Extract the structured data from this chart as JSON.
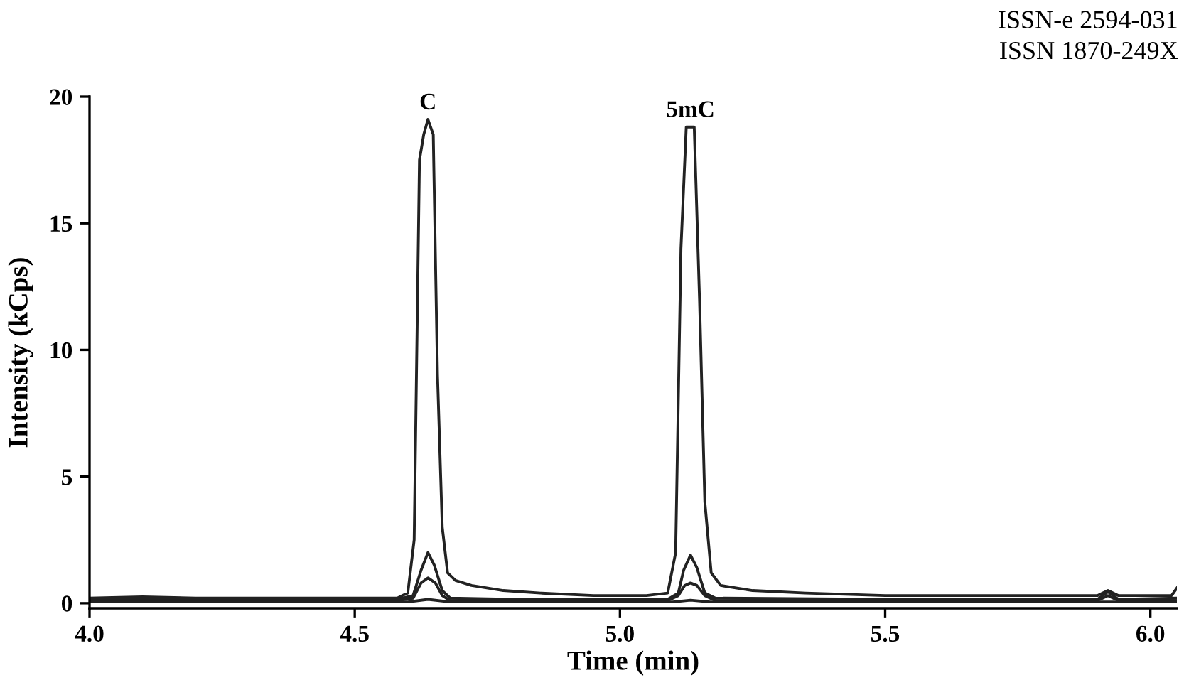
{
  "chart_data": {
    "type": "line",
    "xlabel": "Time (min)",
    "ylabel": "Intensity (kCps)",
    "xlim": [
      4.0,
      6.05
    ],
    "ylim": [
      -0.2,
      20
    ],
    "xticks": [
      {
        "value": 4.0,
        "label": "4.0"
      },
      4.5,
      {
        "value": 5.0,
        "label": "5.0"
      },
      5.5,
      {
        "value": 6.0,
        "label": "6.0"
      }
    ],
    "yticks": [
      0,
      5,
      10,
      15,
      20
    ],
    "grid": false,
    "legend": false,
    "marker": "none",
    "line_style": "solid",
    "series": [
      {
        "color": "#222222",
        "x": [
          4.0,
          4.1,
          4.2,
          4.3,
          4.4,
          4.5,
          4.58,
          4.6,
          4.612,
          4.622,
          4.63,
          4.638,
          4.648,
          4.656,
          4.665,
          4.675,
          4.69,
          4.72,
          4.78,
          4.85,
          4.95,
          5.05,
          5.09,
          5.105,
          5.115,
          5.125,
          5.14,
          5.15,
          5.16,
          5.172,
          5.19,
          5.25,
          5.35,
          5.5,
          5.7,
          5.9,
          5.92,
          5.94,
          6.0,
          6.04,
          6.05
        ],
        "values": [
          0.2,
          0.25,
          0.2,
          0.2,
          0.2,
          0.2,
          0.2,
          0.4,
          2.5,
          17.5,
          18.5,
          19.1,
          18.5,
          9.0,
          3.0,
          1.2,
          0.9,
          0.7,
          0.5,
          0.4,
          0.3,
          0.3,
          0.4,
          2.0,
          14.0,
          18.8,
          18.8,
          12.0,
          4.0,
          1.2,
          0.7,
          0.5,
          0.4,
          0.3,
          0.3,
          0.3,
          0.5,
          0.3,
          0.3,
          0.3,
          0.6
        ]
      },
      {
        "color": "#222222",
        "x": [
          4.0,
          4.3,
          4.58,
          4.61,
          4.625,
          4.638,
          4.65,
          4.665,
          4.68,
          4.8,
          5.09,
          5.11,
          5.12,
          5.133,
          5.145,
          5.16,
          5.18,
          5.5,
          5.9,
          5.92,
          5.94,
          6.05
        ],
        "values": [
          0.15,
          0.15,
          0.15,
          0.3,
          1.3,
          2.0,
          1.5,
          0.5,
          0.2,
          0.15,
          0.15,
          0.4,
          1.3,
          1.9,
          1.4,
          0.4,
          0.2,
          0.15,
          0.15,
          0.45,
          0.15,
          0.2
        ]
      },
      {
        "color": "#222222",
        "x": [
          4.0,
          4.3,
          4.58,
          4.61,
          4.625,
          4.638,
          4.652,
          4.665,
          4.68,
          4.8,
          5.09,
          5.11,
          5.122,
          5.133,
          5.145,
          5.16,
          5.18,
          5.5,
          5.9,
          5.92,
          5.94,
          6.05
        ],
        "values": [
          0.1,
          0.1,
          0.1,
          0.2,
          0.8,
          1.0,
          0.8,
          0.3,
          0.1,
          0.1,
          0.1,
          0.3,
          0.7,
          0.8,
          0.7,
          0.3,
          0.1,
          0.1,
          0.1,
          0.3,
          0.1,
          0.1
        ]
      },
      {
        "color": "#222222",
        "x": [
          4.0,
          4.6,
          4.638,
          4.68,
          5.1,
          5.133,
          5.17,
          6.05
        ],
        "values": [
          0.05,
          0.05,
          0.15,
          0.05,
          0.05,
          0.12,
          0.05,
          0.05
        ]
      }
    ],
    "annotations": [
      {
        "text": "C",
        "x": 4.638,
        "y": 19.3
      },
      {
        "text": "5mC",
        "x": 5.133,
        "y": 19.0
      },
      "ISSN-e 2594-031",
      "ISSN 1870-249X"
    ]
  }
}
